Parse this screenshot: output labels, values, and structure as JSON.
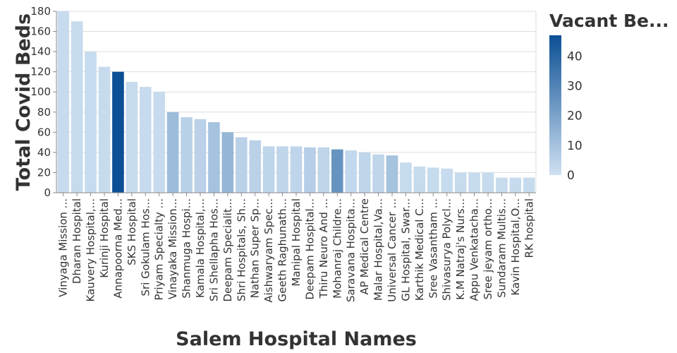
{
  "chart_data": {
    "type": "bar",
    "xlabel": "Salem Hospital Names",
    "ylabel": "Total Covid Beds",
    "ylim": [
      0,
      180
    ],
    "yticks": [
      0,
      20,
      40,
      60,
      80,
      100,
      120,
      140,
      160,
      180
    ],
    "grid": true,
    "categories": [
      "Vinyaga Mission ...",
      "Dharan Hospital",
      "Kauvery Hospital,...",
      "Kurinji Hospital",
      "Annapoorna Med...",
      "SKS Hospital",
      "Sri Gokulam Hos...",
      "Priyam Specialty ...",
      "Vinayaka Mission...",
      "Shanmuga Hospi...",
      "Kamala Hospital,...",
      "Sri Shellapha Hos...",
      "Deepam Specialit...",
      "Shri Hospitals, Sh...",
      "Nathan Super Sp...",
      "Aishwaryam Spec...",
      "Geeth Raghunath...",
      "Manipal Hospital",
      "Deepam Hospital...",
      "Thiru Neuro And ...",
      "Mohanraj Childre...",
      "Saravana Hospita...",
      "AP Medical Centre",
      "Malar Hospital,Va...",
      "Universal Cancer ...",
      "GL Hospital, Swar...",
      "Karthik Medical C...",
      "Sree Vasantham ...",
      "Shivasurya Polycl...",
      "K.M Natraj's Nurs...",
      "Appu Venkatacha...",
      "Sree jeyam ortho...",
      "Sundaram Multis...",
      "Kavin Hospital,O...",
      "RK hospital"
    ],
    "series": [
      {
        "values": [
          180,
          170,
          140,
          125,
          120,
          110,
          105,
          100,
          80,
          75,
          73,
          70,
          60,
          55,
          52,
          46,
          46,
          46,
          45,
          45,
          43,
          42,
          40,
          38,
          37,
          30,
          26,
          25,
          24,
          20,
          20,
          20,
          15,
          15,
          15
        ]
      }
    ],
    "color_values": [
      2,
      2,
      2,
      2,
      47,
      2,
      2,
      2,
      12,
      5,
      5,
      10,
      14,
      5,
      5,
      4,
      4,
      4,
      6,
      4,
      25,
      3,
      4,
      4,
      10,
      2,
      2,
      2,
      2,
      2,
      2,
      2,
      2,
      2,
      2
    ],
    "legend": {
      "title": "Vacant Be...",
      "type": "gradient",
      "position": "right",
      "range": [
        0,
        47
      ],
      "ticks": [
        0,
        10,
        20,
        30,
        40
      ],
      "color_low": "#cfe1f2",
      "color_high": "#0b4f94"
    }
  }
}
